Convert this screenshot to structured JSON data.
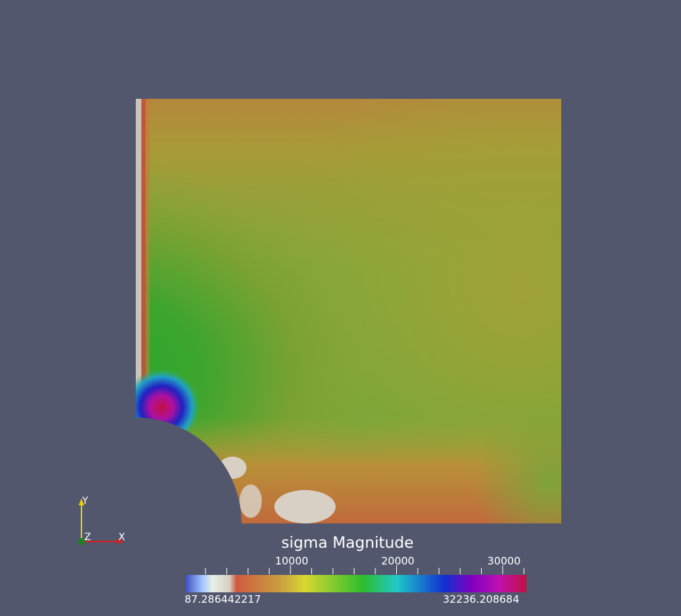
{
  "view": {
    "background": "#52576e",
    "field": "sigma",
    "component": "Magnitude"
  },
  "scalar_bar": {
    "title": "sigma Magnitude",
    "min_label": "87.286442217",
    "max_label": "32236.208684",
    "ticks": [
      {
        "label": "10000",
        "value": 10000
      },
      {
        "label": "20000",
        "value": 20000
      },
      {
        "label": "30000",
        "value": 30000
      }
    ],
    "range": [
      87.286442217,
      32236.208684
    ],
    "colormap": [
      "#3b4cc0",
      "#a0c4ff",
      "#e8f0e8",
      "#d8cfc0",
      "#d05a40",
      "#c9a040",
      "#d8d830",
      "#2dbd2d",
      "#20c8c8",
      "#1030d0",
      "#8000c0",
      "#c010b0",
      "#c01040"
    ]
  },
  "orientation_axes": {
    "x_label": "X",
    "y_label": "Y",
    "z_label": "Z",
    "x_color": "#d42020",
    "y_color": "#e8d000",
    "z_color": "#208020"
  }
}
